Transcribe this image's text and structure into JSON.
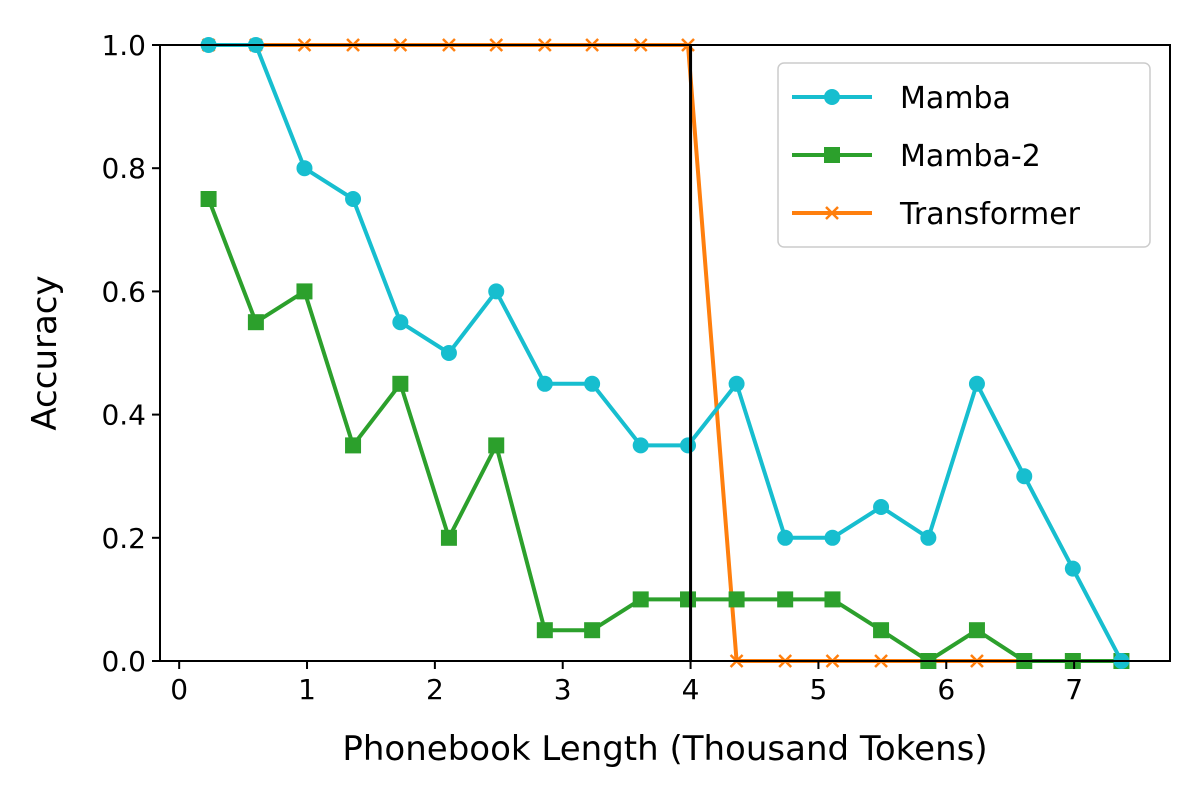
{
  "chart_data": {
    "type": "line",
    "xlabel": "Phonebook Length (Thousand Tokens)",
    "ylabel": "Accuracy",
    "xlim": [
      -0.15,
      7.75
    ],
    "ylim": [
      0.0,
      1.0
    ],
    "xticks": [
      "0",
      "1",
      "2",
      "3",
      "4",
      "5",
      "6",
      "7"
    ],
    "yticks": [
      "0.0",
      "0.2",
      "0.4",
      "0.6",
      "0.8",
      "1.0"
    ],
    "vline_x": 4.0,
    "grid": false,
    "legend_position": "top-right",
    "x": [
      0.23,
      0.6,
      0.98,
      1.36,
      1.73,
      2.11,
      2.48,
      2.86,
      3.23,
      3.61,
      3.98,
      4.36,
      4.74,
      5.11,
      5.49,
      5.86,
      6.24,
      6.61,
      6.99,
      7.37
    ],
    "series": [
      {
        "name": "Mamba",
        "color": "#17becf",
        "marker": "circle",
        "values": [
          1.0,
          1.0,
          0.8,
          0.75,
          0.55,
          0.5,
          0.6,
          0.45,
          0.45,
          0.35,
          0.35,
          0.45,
          0.2,
          0.2,
          0.25,
          0.2,
          0.45,
          0.3,
          0.15,
          0.0
        ]
      },
      {
        "name": "Mamba-2",
        "color": "#2ca02c",
        "marker": "square",
        "values": [
          0.75,
          0.55,
          0.6,
          0.35,
          0.45,
          0.2,
          0.35,
          0.05,
          0.05,
          0.1,
          0.1,
          0.1,
          0.1,
          0.1,
          0.05,
          0.0,
          0.05,
          0.0,
          0.0,
          0.0
        ]
      },
      {
        "name": "Transformer",
        "color": "#ff7f0e",
        "marker": "x",
        "values": [
          1.0,
          1.0,
          1.0,
          1.0,
          1.0,
          1.0,
          1.0,
          1.0,
          1.0,
          1.0,
          1.0,
          0.0,
          0.0,
          0.0,
          0.0,
          0.0,
          0.0,
          0.0,
          0.0,
          0.0
        ]
      }
    ]
  }
}
